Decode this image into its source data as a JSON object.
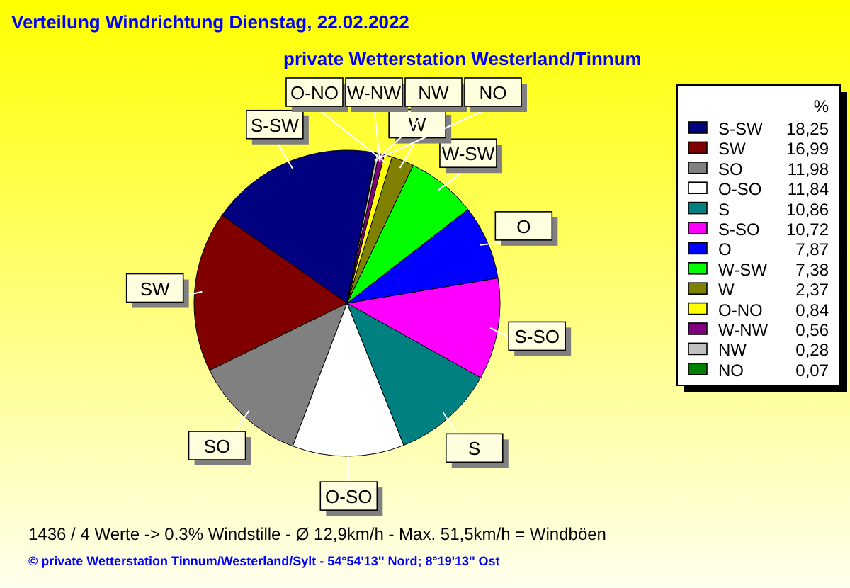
{
  "chart_data": {
    "type": "pie",
    "title": "Verteilung Windrichtung   Dienstag, 22.02.2022",
    "subtitle": "private Wetterstation Westerland/Tinnum",
    "legend_title": "%",
    "legend": "right",
    "categories": [
      "S-SW",
      "SW",
      "SO",
      "O-SO",
      "S",
      "S-SO",
      "O",
      "W-SW",
      "W",
      "O-NO",
      "W-NW",
      "NW",
      "NO"
    ],
    "values": [
      18.25,
      16.99,
      11.98,
      11.84,
      10.86,
      10.72,
      7.87,
      7.38,
      2.37,
      0.84,
      0.56,
      0.28,
      0.07
    ],
    "value_labels": [
      "18,25",
      "16,99",
      "11,98",
      "11,84",
      "10,86",
      "10,72",
      "7,87",
      "7,38",
      "2,37",
      "0,84",
      "0,56",
      "0,28",
      "0,07"
    ],
    "colors": [
      "#000080",
      "#800000",
      "#808080",
      "#ffffff",
      "#008080",
      "#ff00ff",
      "#0000ff",
      "#00ff00",
      "#808000",
      "#ffff00",
      "#800080",
      "#c0c0c0",
      "#008000"
    ],
    "annotations": [
      "1436 / 4 Werte  -> 0.3% Windstille   -   Ø 12,9km/h  -  Max. 51,5km/h = Windböen",
      "© private Wetterstation Tinnum/Westerland/Sylt   -   54°54'13'' Nord; 8°19'13'' Ost"
    ]
  }
}
